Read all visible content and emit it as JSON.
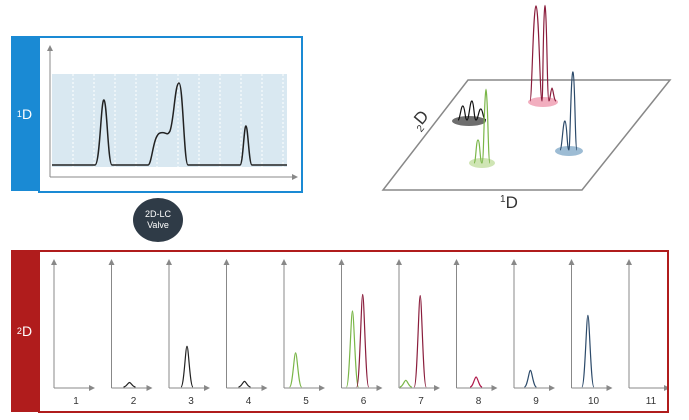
{
  "panel_1d": {
    "label_sup": "1",
    "label_main": "D"
  },
  "panel_2d": {
    "label_sup": "2",
    "label_main": "D"
  },
  "valve": {
    "line1": "2D-LC",
    "line2": "Valve"
  },
  "plane": {
    "axis_2d_sub": "2",
    "axis_2d_main": "D",
    "axis_1d_sup": "1",
    "axis_1d_main": "D"
  },
  "fractions": {
    "labels": [
      "1",
      "2",
      "3",
      "4",
      "5",
      "6",
      "7",
      "8",
      "9",
      "10",
      "11"
    ],
    "peaks": [
      [],
      [
        {
          "pos": 0.5,
          "h": 0.05,
          "color": "#222222"
        }
      ],
      [
        {
          "pos": 0.5,
          "h": 0.38,
          "color": "#222222"
        }
      ],
      [
        {
          "pos": 0.5,
          "h": 0.06,
          "color": "#222222"
        }
      ],
      [
        {
          "pos": 0.3,
          "h": 0.32,
          "color": "#7ab648"
        }
      ],
      [
        {
          "pos": 0.28,
          "h": 0.7,
          "color": "#7ab648"
        },
        {
          "pos": 0.6,
          "h": 0.85,
          "color": "#8a1d3c"
        }
      ],
      [
        {
          "pos": 0.15,
          "h": 0.07,
          "color": "#7ab648"
        },
        {
          "pos": 0.6,
          "h": 0.84,
          "color": "#8a1d3c"
        }
      ],
      [
        {
          "pos": 0.55,
          "h": 0.1,
          "color": "#b0184a"
        }
      ],
      [
        {
          "pos": 0.45,
          "h": 0.16,
          "color": "#2c4a6a"
        }
      ],
      [
        {
          "pos": 0.45,
          "h": 0.66,
          "color": "#2c4a6a"
        }
      ],
      []
    ]
  },
  "colors": {
    "blue": "#1a8ad4",
    "red": "#b01c1c",
    "green": "#7ab648",
    "maroon": "#8a1d3c",
    "navy": "#2c4a6a",
    "valve": "#2f3b47"
  }
}
